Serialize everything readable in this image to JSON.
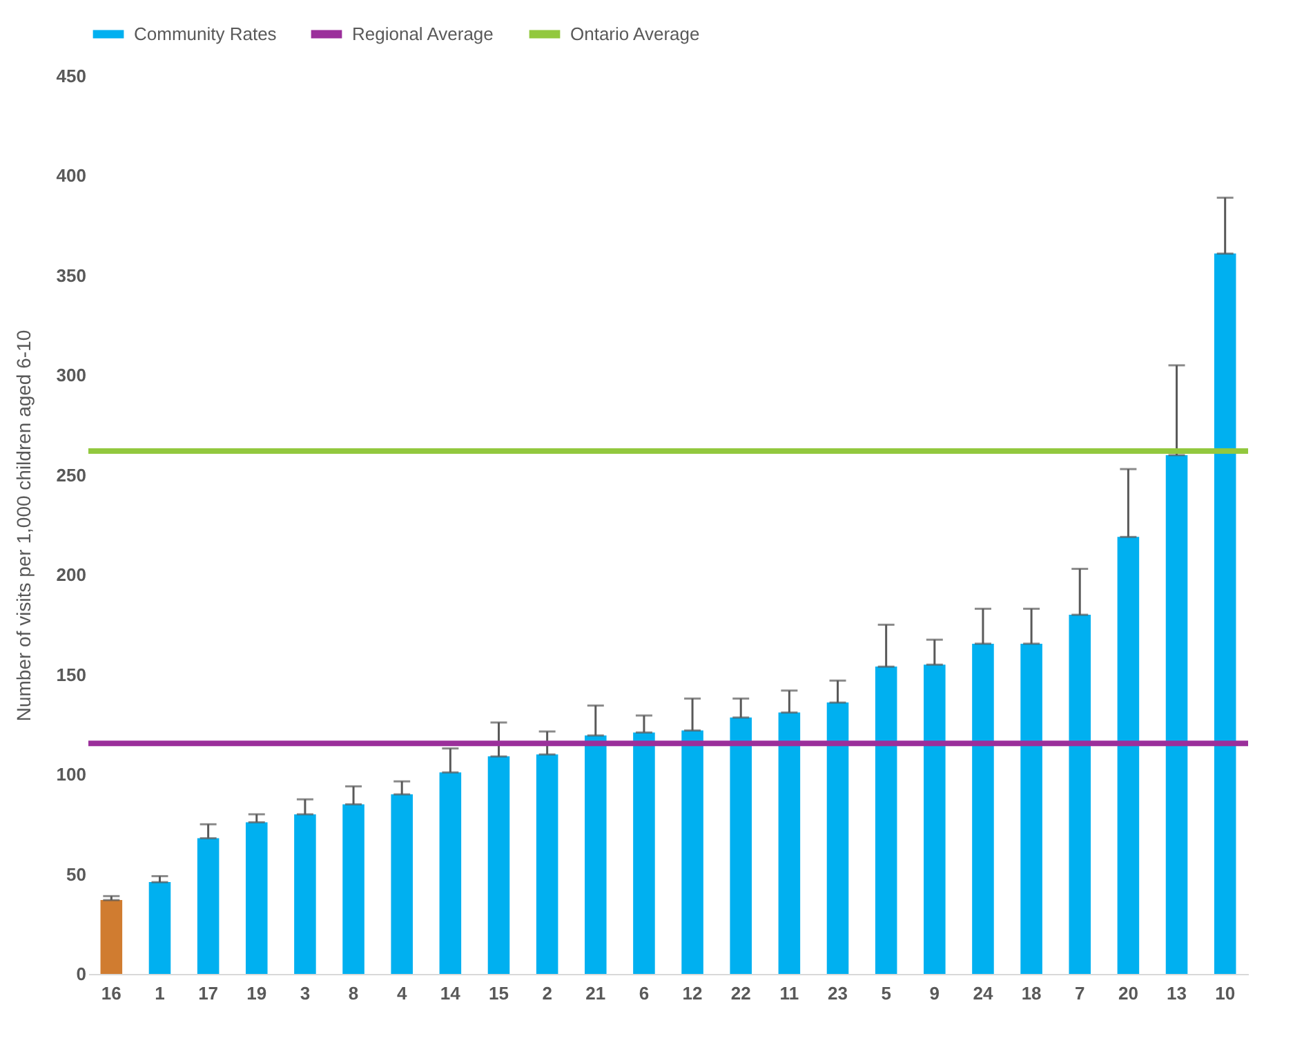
{
  "chart_data": {
    "type": "bar",
    "ylabel": "Number of visits per 1,000 children aged 6-10",
    "categories": [
      "16",
      "1",
      "17",
      "19",
      "3",
      "8",
      "4",
      "14",
      "15",
      "2",
      "21",
      "6",
      "12",
      "22",
      "11",
      "23",
      "5",
      "9",
      "24",
      "18",
      "7",
      "20",
      "13",
      "10"
    ],
    "series": [
      {
        "name": "Community Rates",
        "color": "#00b0f0",
        "values": [
          37,
          46,
          68,
          76,
          80,
          85,
          90,
          101,
          109,
          110,
          119.5,
          121,
          122,
          128.5,
          131,
          136,
          154,
          155,
          165.5,
          165.5,
          180,
          219,
          260,
          361
        ],
        "colors": [
          "#d07c30",
          "#00b0f0",
          "#00b0f0",
          "#00b0f0",
          "#00b0f0",
          "#00b0f0",
          "#00b0f0",
          "#00b0f0",
          "#00b0f0",
          "#00b0f0",
          "#00b0f0",
          "#00b0f0",
          "#00b0f0",
          "#00b0f0",
          "#00b0f0",
          "#00b0f0",
          "#00b0f0",
          "#00b0f0",
          "#00b0f0",
          "#00b0f0",
          "#00b0f0",
          "#00b0f0",
          "#00b0f0",
          "#00b0f0"
        ],
        "errors": [
          [
            37,
            39
          ],
          [
            46,
            49
          ],
          [
            68,
            75
          ],
          [
            76,
            80
          ],
          [
            80,
            87.5
          ],
          [
            85,
            94
          ],
          [
            90,
            96.5
          ],
          [
            101,
            113
          ],
          [
            109,
            126
          ],
          [
            110,
            121.5
          ],
          [
            119.5,
            134.5
          ],
          [
            121,
            129.5
          ],
          [
            122,
            138
          ],
          [
            128.5,
            138
          ],
          [
            131,
            142
          ],
          [
            136,
            147
          ],
          [
            154,
            175
          ],
          [
            155,
            167.5
          ],
          [
            165.5,
            183
          ],
          [
            165.5,
            183
          ],
          [
            180,
            203
          ],
          [
            219,
            253
          ],
          [
            260,
            305
          ],
          [
            361,
            389
          ]
        ]
      }
    ],
    "ref_lines": [
      {
        "axis": "y",
        "value": 115.5,
        "label": "Regional Average",
        "color": "#9b2f9b"
      },
      {
        "axis": "y",
        "value": 262,
        "label": "Ontario Average",
        "color": "#92c83e"
      }
    ],
    "ylim": [
      0,
      450
    ],
    "yticks": [
      0,
      50,
      100,
      150,
      200,
      250,
      300,
      350,
      400,
      450
    ],
    "legend": "top"
  }
}
